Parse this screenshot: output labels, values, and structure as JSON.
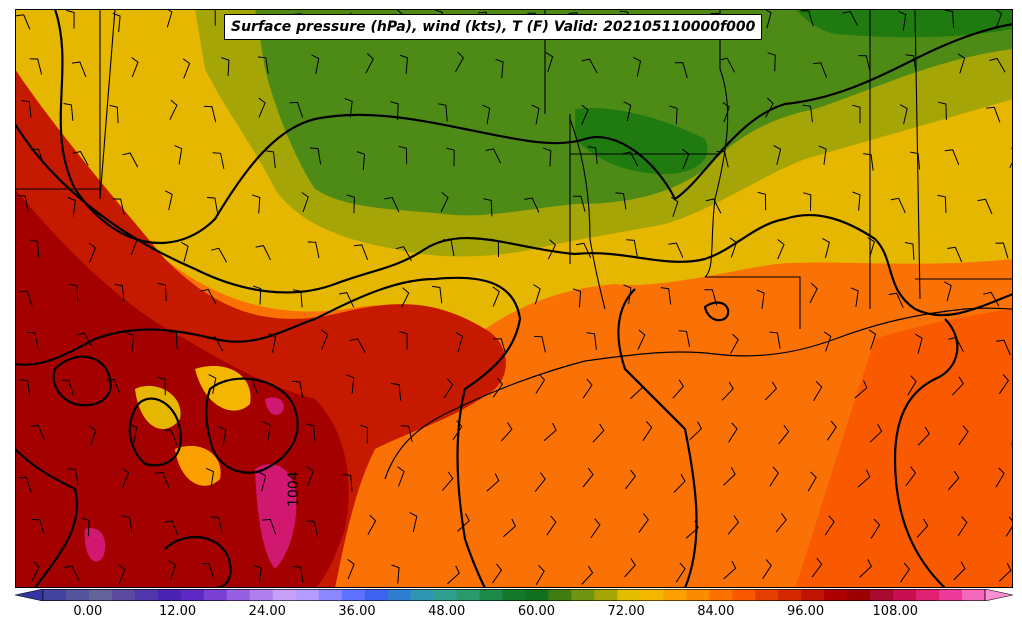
{
  "title": "Surface pressure (hPa), wind (kts), T (F) Valid: 202105110000f000",
  "isobar_label": "1004",
  "colorbar": {
    "min": -6,
    "max": 120,
    "step": 3,
    "tick_labels": [
      "0.00",
      "12.00",
      "24.00",
      "36.00",
      "48.00",
      "60.00",
      "72.00",
      "84.00",
      "96.00",
      "108.00"
    ],
    "tick_values": [
      0,
      12,
      24,
      36,
      48,
      60,
      72,
      84,
      96,
      108
    ],
    "colors": [
      "#3535a0",
      "#44449e",
      "#54549c",
      "#63639a",
      "#5a4aa0",
      "#4f36aa",
      "#4a22b4",
      "#5e28c4",
      "#7a40d4",
      "#9660e0",
      "#b080ee",
      "#c7a0f8",
      "#b59cff",
      "#8c86ff",
      "#5f72ff",
      "#3d62f0",
      "#2f7ed0",
      "#2f95b0",
      "#2fa090",
      "#2a9a6c",
      "#1e8a4a",
      "#127a2a",
      "#107020",
      "#3f7d12",
      "#6f9512",
      "#a6a508",
      "#e3bd00",
      "#f4b600",
      "#fca000",
      "#fb8c00",
      "#fc7200",
      "#f95a00",
      "#e43e00",
      "#d42800",
      "#c01400",
      "#ad0000",
      "#9c0000",
      "#a80a30",
      "#c81050",
      "#e02070",
      "#ee3a98",
      "#f469bd",
      "#f78fd0"
    ]
  },
  "colors": {
    "ocean": "#fa7205",
    "north_band": "#e6b700",
    "green": "#4e8b16",
    "dark_green": "#1f7a10",
    "olive": "#a6a508",
    "hot_red": "#c61a00",
    "deep_red": "#a40000",
    "magenta": "#d01870"
  }
}
